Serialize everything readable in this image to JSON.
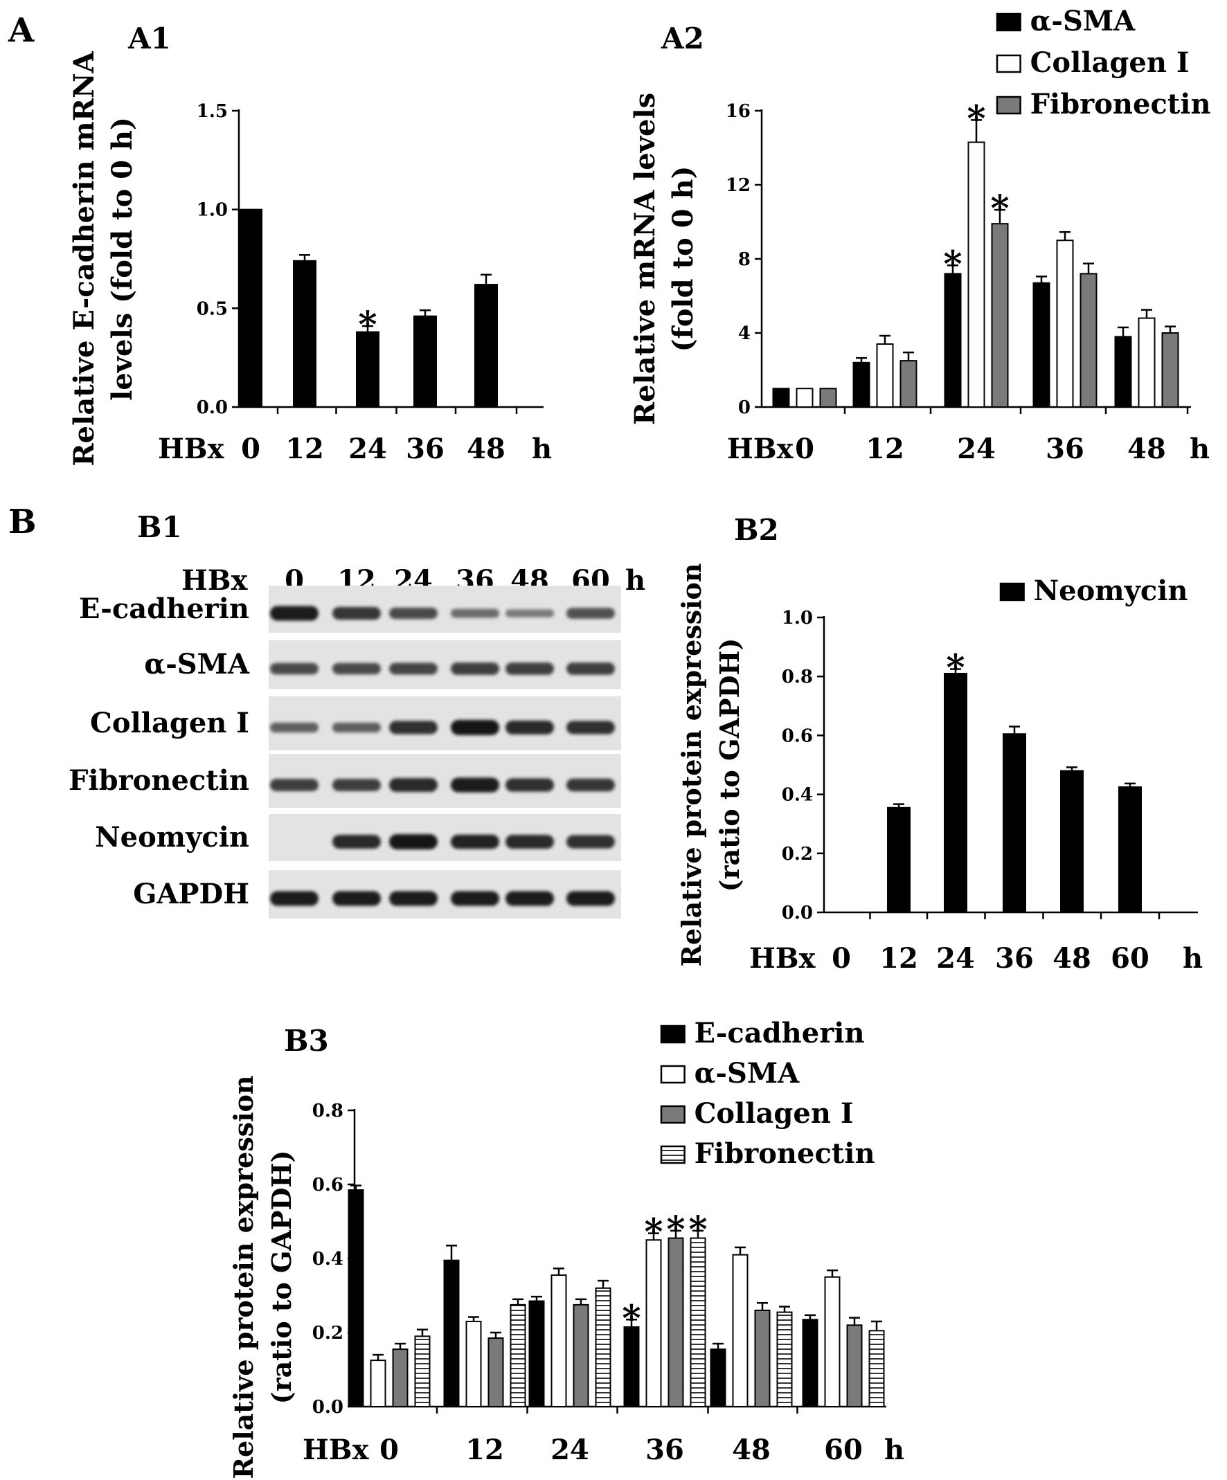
{
  "figure": {
    "panels": {
      "A": "A",
      "B": "B"
    },
    "time_unit": "h",
    "treatment_label": "HBx"
  },
  "colors": {
    "black": "#000000",
    "white": "#ffffff",
    "gray": "#7a7a7a",
    "blot_bg": "#e3e3e3",
    "band": "#151515"
  },
  "chart_data": [
    {
      "id": "A1",
      "panel_label": "A1",
      "type": "bar",
      "categories": [
        "0",
        "12",
        "24",
        "36",
        "48"
      ],
      "xprefix": "HBx",
      "xunit": "h",
      "ylabel": [
        "Relative E-cadherin mRNA",
        "levels (fold to 0 h)"
      ],
      "ylim": [
        0,
        1.5
      ],
      "yticks": [
        "0.0",
        "0.5",
        "1.0",
        "1.5"
      ],
      "series": [
        {
          "fill": "black",
          "values": [
            1.0,
            0.74,
            0.38,
            0.46,
            0.62
          ],
          "errors": [
            0,
            0.03,
            0.03,
            0.03,
            0.05
          ],
          "sig": [
            false,
            false,
            true,
            false,
            false
          ]
        }
      ]
    },
    {
      "id": "A2",
      "panel_label": "A2",
      "type": "bar",
      "categories": [
        "0",
        "12",
        "24",
        "36",
        "48"
      ],
      "xprefix": "HBx",
      "xunit": "h",
      "ylabel": [
        "Relative mRNA levels",
        "(fold to 0 h)"
      ],
      "ylim": [
        0,
        16
      ],
      "yticks": [
        "0",
        "4",
        "8",
        "12",
        "16"
      ],
      "legend": {
        "position": "top-right"
      },
      "series": [
        {
          "name": "α-SMA",
          "fill": "black",
          "values": [
            1.0,
            2.4,
            7.2,
            6.7,
            3.8
          ],
          "errors": [
            0,
            0.25,
            0.45,
            0.35,
            0.5
          ],
          "sig": [
            false,
            false,
            true,
            false,
            false
          ]
        },
        {
          "name": "Collagen I",
          "fill": "white",
          "values": [
            1.0,
            3.4,
            14.3,
            9.0,
            4.8
          ],
          "errors": [
            0,
            0.45,
            1.2,
            0.45,
            0.45
          ],
          "sig": [
            false,
            false,
            true,
            false,
            false
          ]
        },
        {
          "name": "Fibronectin",
          "fill": "gray",
          "values": [
            1.0,
            2.5,
            9.9,
            7.2,
            4.0
          ],
          "errors": [
            0,
            0.45,
            0.75,
            0.55,
            0.35
          ],
          "sig": [
            false,
            false,
            true,
            false,
            false
          ]
        }
      ]
    },
    {
      "id": "B2",
      "panel_label": "B2",
      "type": "bar",
      "categories": [
        "0",
        "12",
        "24",
        "36",
        "48",
        "60"
      ],
      "xprefix": "HBx",
      "xunit": "h",
      "ylabel": [
        "Relative protein expression",
        "(ratio to GAPDH)"
      ],
      "ylim": [
        0,
        1.0
      ],
      "yticks": [
        "0.0",
        "0.2",
        "0.4",
        "0.6",
        "0.8",
        "1.0"
      ],
      "legend": {
        "position": "top-right"
      },
      "series": [
        {
          "name": "Neomycin",
          "fill": "black",
          "values": [
            0,
            0.355,
            0.81,
            0.605,
            0.48,
            0.425
          ],
          "errors": [
            0,
            0.012,
            0.015,
            0.025,
            0.012,
            0.012
          ],
          "sig": [
            false,
            false,
            true,
            false,
            false,
            false
          ]
        }
      ]
    },
    {
      "id": "B3",
      "panel_label": "B3",
      "type": "bar",
      "categories": [
        "0",
        "12",
        "24",
        "36",
        "48",
        "60"
      ],
      "xprefix": "HBx",
      "xunit": "h",
      "ylabel": [
        "Relative protein expression",
        "(ratio to GAPDH)"
      ],
      "ylim": [
        0,
        0.8
      ],
      "yticks": [
        "0.0",
        "0.2",
        "0.4",
        "0.6",
        "0.8"
      ],
      "legend": {
        "position": "top-right"
      },
      "series": [
        {
          "name": "E-cadherin",
          "fill": "black",
          "values": [
            0.585,
            0.395,
            0.285,
            0.215,
            0.155,
            0.235
          ],
          "errors": [
            0.012,
            0.04,
            0.012,
            0.02,
            0.015,
            0.012
          ],
          "sig": [
            false,
            false,
            false,
            true,
            false,
            false
          ]
        },
        {
          "name": "α-SMA",
          "fill": "white",
          "values": [
            0.125,
            0.23,
            0.355,
            0.45,
            0.41,
            0.35
          ],
          "errors": [
            0.015,
            0.012,
            0.018,
            0.018,
            0.02,
            0.018
          ],
          "sig": [
            false,
            false,
            false,
            true,
            false,
            false
          ]
        },
        {
          "name": "Collagen I",
          "fill": "gray",
          "values": [
            0.155,
            0.185,
            0.275,
            0.455,
            0.26,
            0.22
          ],
          "errors": [
            0.015,
            0.015,
            0.015,
            0.02,
            0.02,
            0.02
          ],
          "sig": [
            false,
            false,
            false,
            true,
            false,
            false
          ]
        },
        {
          "name": "Fibronectin",
          "fill": "stripes",
          "values": [
            0.19,
            0.275,
            0.32,
            0.455,
            0.255,
            0.205
          ],
          "errors": [
            0.018,
            0.015,
            0.02,
            0.02,
            0.015,
            0.025
          ],
          "sig": [
            false,
            false,
            false,
            true,
            false,
            false
          ]
        }
      ]
    }
  ],
  "blot": {
    "panel_label": "B1",
    "header": "HBx",
    "lanes": [
      "0",
      "12",
      "24",
      "36",
      "48",
      "60"
    ],
    "unit": "h",
    "rows": [
      {
        "label": "E-cadherin",
        "intensities": [
          0.95,
          0.75,
          0.6,
          0.35,
          0.25,
          0.55
        ]
      },
      {
        "label": "α-SMA",
        "intensities": [
          0.6,
          0.6,
          0.65,
          0.7,
          0.7,
          0.7
        ]
      },
      {
        "label": "Collagen I",
        "intensities": [
          0.45,
          0.45,
          0.8,
          1.0,
          0.85,
          0.8
        ]
      },
      {
        "label": "Fibronectin",
        "intensities": [
          0.7,
          0.7,
          0.85,
          0.95,
          0.8,
          0.75
        ]
      },
      {
        "label": "Neomycin",
        "intensities": [
          0.0,
          0.85,
          1.0,
          0.9,
          0.85,
          0.8
        ]
      },
      {
        "label": "GAPDH",
        "intensities": [
          0.95,
          0.95,
          0.95,
          0.95,
          0.95,
          0.95
        ]
      }
    ]
  }
}
